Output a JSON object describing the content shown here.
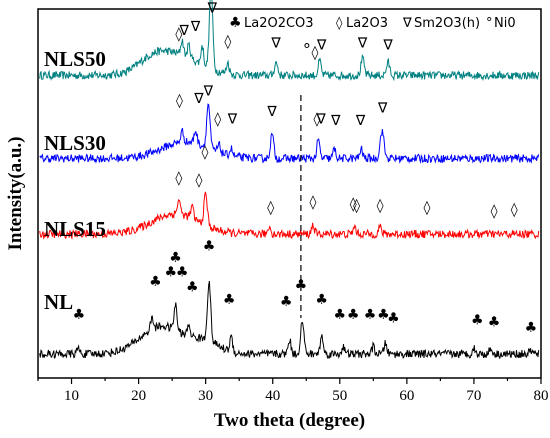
{
  "chart_data": {
    "type": "line",
    "xlabel": "Two theta (degree)",
    "ylabel": "Intensity(a.u.)",
    "xlim": [
      5,
      80
    ],
    "xticks": [
      10,
      20,
      30,
      40,
      50,
      60,
      70,
      80
    ],
    "grid": false,
    "legend_position": "top",
    "legend": {
      "items": [
        {
          "symbol": "♣",
          "label": "La2O2CO3"
        },
        {
          "symbol": "◊",
          "label": "La2O3"
        },
        {
          "symbol": "∇",
          "label": "Sm2O3(h)"
        },
        {
          "symbol": "°",
          "label": "Ni0"
        }
      ]
    },
    "reference_line_x": 44.2,
    "colors": {
      "NL": "#000000",
      "NLS15": "#ff0000",
      "NLS30": "#0000ff",
      "NLS50": "#008080"
    },
    "series": [
      {
        "name": "NLS50",
        "baseline": 0.82,
        "humps": [
          [
            25.5,
            0.055,
            5
          ],
          [
            22,
            0.025,
            3
          ]
        ],
        "peaks": [
          [
            26.5,
            0.04,
            0.3
          ],
          [
            27.5,
            0.035,
            0.3
          ],
          [
            29.5,
            0.05,
            0.3
          ],
          [
            30.8,
            0.22,
            0.35
          ],
          [
            33.3,
            0.03,
            0.3
          ],
          [
            40.5,
            0.035,
            0.35
          ],
          [
            47.0,
            0.04,
            0.3
          ],
          [
            53.4,
            0.045,
            0.35
          ],
          [
            57.2,
            0.035,
            0.35
          ]
        ],
        "markers": [
          {
            "symbol": "∇",
            "x": 31.0,
            "y": 0.99
          },
          {
            "symbol": "◊",
            "x": 26.0,
            "y": 0.92
          },
          {
            "symbol": "∇",
            "x": 26.8,
            "y": 0.93
          },
          {
            "symbol": "∇",
            "x": 28.5,
            "y": 0.94
          },
          {
            "symbol": "◊",
            "x": 33.3,
            "y": 0.9
          },
          {
            "symbol": "∇",
            "x": 40.5,
            "y": 0.895
          },
          {
            "symbol": "°",
            "x": 45.1,
            "y": 0.875
          },
          {
            "symbol": "◊",
            "x": 46.3,
            "y": 0.87
          },
          {
            "symbol": "∇",
            "x": 47.3,
            "y": 0.89
          },
          {
            "symbol": "∇",
            "x": 53.4,
            "y": 0.895
          },
          {
            "symbol": "∇",
            "x": 57.2,
            "y": 0.89
          }
        ]
      },
      {
        "name": "NLS30",
        "baseline": 0.595,
        "humps": [
          [
            27,
            0.045,
            5
          ]
        ],
        "peaks": [
          [
            26.5,
            0.03,
            0.3
          ],
          [
            28.5,
            0.035,
            0.3
          ],
          [
            30.4,
            0.12,
            0.35
          ],
          [
            32.0,
            0.02,
            0.3
          ],
          [
            33.8,
            0.02,
            0.3
          ],
          [
            39.9,
            0.065,
            0.35
          ],
          [
            46.8,
            0.05,
            0.3
          ],
          [
            49.2,
            0.025,
            0.3
          ],
          [
            53.2,
            0.025,
            0.3
          ],
          [
            56.3,
            0.075,
            0.4
          ]
        ],
        "markers": [
          {
            "symbol": "◊",
            "x": 26.1,
            "y": 0.74
          },
          {
            "symbol": "∇",
            "x": 29.0,
            "y": 0.745
          },
          {
            "symbol": "∇",
            "x": 30.4,
            "y": 0.765
          },
          {
            "symbol": "◊",
            "x": 31.8,
            "y": 0.69
          },
          {
            "symbol": "∇",
            "x": 34.0,
            "y": 0.69
          },
          {
            "symbol": "∇",
            "x": 39.9,
            "y": 0.71
          },
          {
            "symbol": "◊",
            "x": 46.6,
            "y": 0.69
          },
          {
            "symbol": "∇",
            "x": 47.2,
            "y": 0.69
          },
          {
            "symbol": "∇",
            "x": 49.4,
            "y": 0.685
          },
          {
            "symbol": "∇",
            "x": 53.1,
            "y": 0.685
          },
          {
            "symbol": "∇",
            "x": 56.4,
            "y": 0.72
          }
        ]
      },
      {
        "name": "NLS15",
        "baseline": 0.39,
        "humps": [
          [
            25.5,
            0.055,
            5
          ]
        ],
        "peaks": [
          [
            26.0,
            0.04,
            0.3
          ],
          [
            28.0,
            0.03,
            0.3
          ],
          [
            30.0,
            0.085,
            0.35
          ],
          [
            39.5,
            0.02,
            0.3
          ],
          [
            46.0,
            0.025,
            0.3
          ],
          [
            52.2,
            0.02,
            0.3
          ],
          [
            56.0,
            0.02,
            0.3
          ]
        ],
        "markers": [
          {
            "symbol": "◊",
            "x": 29.9,
            "y": 0.6
          },
          {
            "symbol": "◊",
            "x": 26.0,
            "y": 0.53
          },
          {
            "symbol": "◊",
            "x": 29.0,
            "y": 0.525
          },
          {
            "symbol": "◊",
            "x": 39.7,
            "y": 0.45
          },
          {
            "symbol": "◊",
            "x": 46.0,
            "y": 0.465
          },
          {
            "symbol": "◊",
            "x": 52.0,
            "y": 0.46
          },
          {
            "symbol": "◊",
            "x": 52.5,
            "y": 0.455
          },
          {
            "symbol": "◊",
            "x": 56.0,
            "y": 0.455
          },
          {
            "symbol": "◊",
            "x": 63.0,
            "y": 0.45
          },
          {
            "symbol": "◊",
            "x": 73.0,
            "y": 0.44
          },
          {
            "symbol": "◊",
            "x": 76.0,
            "y": 0.445
          }
        ]
      },
      {
        "name": "NL",
        "baseline": 0.065,
        "humps": [
          [
            23.5,
            0.075,
            4.5
          ],
          [
            30,
            0.03,
            3
          ]
        ],
        "peaks": [
          [
            11.0,
            0.015,
            0.3
          ],
          [
            22.0,
            0.03,
            0.3
          ],
          [
            25.5,
            0.07,
            0.3
          ],
          [
            27.5,
            0.03,
            0.3
          ],
          [
            30.5,
            0.16,
            0.35
          ],
          [
            33.8,
            0.04,
            0.3
          ],
          [
            42.5,
            0.04,
            0.3
          ],
          [
            44.4,
            0.09,
            0.35
          ],
          [
            47.3,
            0.05,
            0.3
          ],
          [
            50.5,
            0.02,
            0.3
          ],
          [
            55.0,
            0.02,
            0.3
          ],
          [
            56.8,
            0.03,
            0.3
          ],
          [
            70.0,
            0.015,
            0.3
          ],
          [
            72.5,
            0.015,
            0.3
          ],
          [
            78.5,
            0.01,
            0.3
          ]
        ],
        "markers": [
          {
            "symbol": "♣",
            "x": 11.1,
            "y": 0.16
          },
          {
            "symbol": "♣",
            "x": 22.5,
            "y": 0.25
          },
          {
            "symbol": "♣",
            "x": 24.8,
            "y": 0.275
          },
          {
            "symbol": "♣",
            "x": 25.5,
            "y": 0.315
          },
          {
            "symbol": "♣",
            "x": 26.5,
            "y": 0.275
          },
          {
            "symbol": "♣",
            "x": 28.0,
            "y": 0.235
          },
          {
            "symbol": "♣",
            "x": 30.5,
            "y": 0.345
          },
          {
            "symbol": "♣",
            "x": 33.5,
            "y": 0.2
          },
          {
            "symbol": "♣",
            "x": 42.0,
            "y": 0.195
          },
          {
            "symbol": "♣",
            "x": 44.2,
            "y": 0.24
          },
          {
            "symbol": "♣",
            "x": 47.3,
            "y": 0.2
          },
          {
            "symbol": "♣",
            "x": 50.0,
            "y": 0.16
          },
          {
            "symbol": "♣",
            "x": 52.0,
            "y": 0.16
          },
          {
            "symbol": "♣",
            "x": 54.5,
            "y": 0.16
          },
          {
            "symbol": "♣",
            "x": 56.5,
            "y": 0.16
          },
          {
            "symbol": "♣",
            "x": 58.0,
            "y": 0.15
          },
          {
            "symbol": "♣",
            "x": 70.5,
            "y": 0.145
          },
          {
            "symbol": "♣",
            "x": 73.0,
            "y": 0.14
          },
          {
            "symbol": "♣",
            "x": 78.5,
            "y": 0.125
          }
        ]
      }
    ]
  }
}
